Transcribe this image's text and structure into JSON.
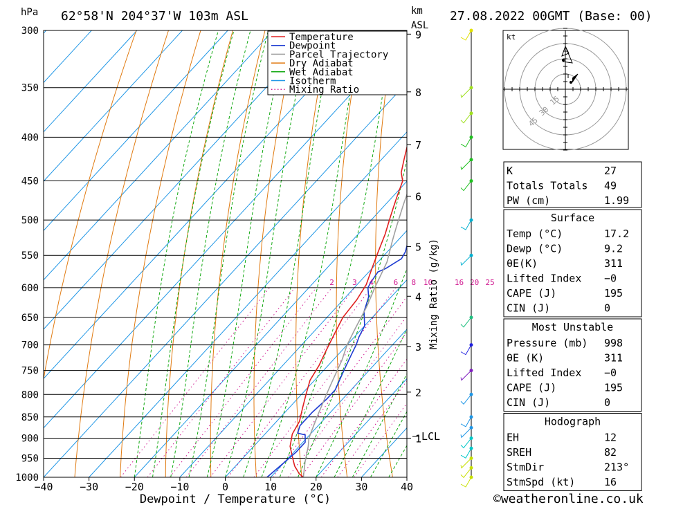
{
  "header": {
    "location": "62°58'N  204°37'W  103m  ASL",
    "datetime": "27.08.2022  00GMT  (Base: 00)",
    "pressure_unit": "hPa",
    "km_unit": "km",
    "asl_unit": "ASL"
  },
  "colors": {
    "temperature": "#e02020",
    "dewpoint": "#1e3cd2",
    "parcel": "#a0a0a0",
    "dry_adiabat": "#e07a10",
    "wet_adiabat": "#10a810",
    "isotherm": "#1e96e6",
    "mixing_ratio": "#d01890"
  },
  "legend": [
    {
      "label": "Temperature",
      "key": "temperature",
      "style": "solid"
    },
    {
      "label": "Dewpoint",
      "key": "dewpoint",
      "style": "solid"
    },
    {
      "label": "Parcel Trajectory",
      "key": "parcel",
      "style": "solid"
    },
    {
      "label": "Dry Adiabat",
      "key": "dry_adiabat",
      "style": "solid"
    },
    {
      "label": "Wet Adiabat",
      "key": "wet_adiabat",
      "style": "solid"
    },
    {
      "label": "Isotherm",
      "key": "isotherm",
      "style": "solid"
    },
    {
      "label": "Mixing Ratio",
      "key": "mixing_ratio",
      "style": "dotted"
    }
  ],
  "chart_data": {
    "type": "line",
    "xlabel": "Dewpoint / Temperature (°C)",
    "y2label": "Mixing Ratio (g/kg)",
    "xlim": [
      -40,
      40
    ],
    "ylim": [
      1000,
      300
    ],
    "yscale": "log",
    "xticks": [
      -40,
      -30,
      -20,
      -10,
      0,
      10,
      20,
      30,
      40
    ],
    "xtick_labels": [
      "−40",
      "−30",
      "−20",
      "−10",
      "0",
      "10",
      "20",
      "30",
      "40"
    ],
    "pressure_levels": [
      300,
      350,
      400,
      450,
      500,
      550,
      600,
      650,
      700,
      750,
      800,
      850,
      900,
      950,
      1000
    ],
    "km_ticks": [
      {
        "label": "9",
        "p": 303
      },
      {
        "label": "8",
        "p": 354
      },
      {
        "label": "7",
        "p": 408
      },
      {
        "label": "6",
        "p": 469
      },
      {
        "label": "5",
        "p": 537
      },
      {
        "label": "4",
        "p": 614
      },
      {
        "label": "3",
        "p": 703
      },
      {
        "label": "2",
        "p": 795
      },
      {
        "label": "1",
        "p": 900
      }
    ],
    "lcl": {
      "label": "LCL",
      "p": 896
    },
    "mixing_ratio_labels": [
      "2",
      "3",
      "4",
      "6",
      "8",
      "10",
      "16",
      "20",
      "25"
    ],
    "series": [
      {
        "name": "Temperature",
        "key": "temperature",
        "points": [
          [
            17.2,
            1000
          ],
          [
            15.5,
            990
          ],
          [
            13,
            970
          ],
          [
            11,
            950
          ],
          [
            8,
            920
          ],
          [
            6,
            890
          ],
          [
            5,
            860
          ],
          [
            3,
            830
          ],
          [
            1,
            800
          ],
          [
            -1,
            770
          ],
          [
            -2,
            740
          ],
          [
            -3.5,
            710
          ],
          [
            -5,
            680
          ],
          [
            -6.5,
            650
          ],
          [
            -7,
            620
          ],
          [
            -8,
            595
          ],
          [
            -10,
            570
          ],
          [
            -12,
            545
          ],
          [
            -14,
            520
          ],
          [
            -16,
            500
          ],
          [
            -17.5,
            485
          ],
          [
            -19,
            470
          ],
          [
            -21,
            450
          ],
          [
            -23,
            440
          ],
          [
            -25,
            425
          ],
          [
            -27,
            410
          ],
          [
            -29,
            395
          ],
          [
            -31,
            380
          ],
          [
            -33,
            365
          ],
          [
            -34,
            355
          ],
          [
            -35,
            340
          ],
          [
            -37,
            320
          ],
          [
            -38,
            310
          ],
          [
            -38.5,
            300
          ]
        ]
      },
      {
        "name": "Dewpoint",
        "key": "dewpoint",
        "points": [
          [
            9.2,
            1000
          ],
          [
            9.5,
            985
          ],
          [
            10,
            960
          ],
          [
            10.5,
            935
          ],
          [
            10.5,
            910
          ],
          [
            9,
            892
          ],
          [
            7,
            888
          ],
          [
            6,
            870
          ],
          [
            6,
            840
          ],
          [
            6.5,
            810
          ],
          [
            6.5,
            790
          ],
          [
            5.5,
            770
          ],
          [
            4.5,
            750
          ],
          [
            3,
            720
          ],
          [
            2,
            700
          ],
          [
            1,
            685
          ],
          [
            0,
            665
          ],
          [
            -3,
            640
          ],
          [
            -5,
            615
          ],
          [
            -7,
            600
          ],
          [
            -7.5,
            590
          ],
          [
            -8,
            575
          ],
          [
            -7,
            570
          ],
          [
            -5.5,
            555
          ],
          [
            -6,
            545
          ],
          [
            -7,
            535
          ],
          [
            -8.5,
            520
          ],
          [
            -9.5,
            500
          ],
          [
            -11.5,
            480
          ],
          [
            -13,
            470
          ],
          [
            -12,
            460
          ],
          [
            -11.5,
            450
          ],
          [
            -11,
            440
          ],
          [
            -11.5,
            425
          ],
          [
            -12.5,
            410
          ],
          [
            -13,
            395
          ],
          [
            -14,
            380
          ],
          [
            -15,
            365
          ],
          [
            -17,
            360
          ],
          [
            -18,
            355
          ],
          [
            -19,
            340
          ],
          [
            -20,
            335
          ],
          [
            -19,
            320
          ],
          [
            -17,
            305
          ],
          [
            -16,
            300
          ]
        ]
      },
      {
        "name": "Parcel Trajectory",
        "key": "parcel",
        "points": [
          [
            17.2,
            1000
          ],
          [
            14.5,
            960
          ],
          [
            12,
            920
          ],
          [
            10.5,
            900
          ],
          [
            9,
            870
          ],
          [
            7.5,
            840
          ],
          [
            5.5,
            800
          ],
          [
            4,
            770
          ],
          [
            2,
            730
          ],
          [
            0,
            700
          ],
          [
            -1.5,
            670
          ],
          [
            -3.5,
            630
          ],
          [
            -5.5,
            600
          ],
          [
            -8,
            560
          ],
          [
            -11,
            530
          ],
          [
            -13,
            510
          ],
          [
            -16,
            480
          ],
          [
            -19,
            450
          ],
          [
            -21.5,
            430
          ],
          [
            -25,
            400
          ],
          [
            -29,
            375
          ],
          [
            -33,
            350
          ],
          [
            -37,
            325
          ],
          [
            -40,
            305
          ]
        ]
      }
    ],
    "wind_barbs": [
      {
        "p": 1000,
        "color": "#c8e000"
      },
      {
        "p": 975,
        "color": "#c8e000"
      },
      {
        "p": 950,
        "color": "#c8e000"
      },
      {
        "p": 925,
        "color": "#00c8c8"
      },
      {
        "p": 900,
        "color": "#00c8c8"
      },
      {
        "p": 875,
        "color": "#1e96e6"
      },
      {
        "p": 850,
        "color": "#1e96e6"
      },
      {
        "p": 800,
        "color": "#1e96e6"
      },
      {
        "p": 750,
        "color": "#8020c0"
      },
      {
        "p": 700,
        "color": "#2020e0"
      },
      {
        "p": 650,
        "color": "#20c080"
      },
      {
        "p": 550,
        "color": "#00b0d0"
      },
      {
        "p": 500,
        "color": "#00b0d0"
      },
      {
        "p": 450,
        "color": "#20c020"
      },
      {
        "p": 425,
        "color": "#20c020"
      },
      {
        "p": 400,
        "color": "#20c020"
      },
      {
        "p": 375,
        "color": "#a0e020"
      },
      {
        "p": 350,
        "color": "#a0e020"
      },
      {
        "p": 300,
        "color": "#e0e000"
      }
    ]
  },
  "hodograph": {
    "unit": "kt",
    "ring_labels": [
      "15",
      "30",
      "45"
    ]
  },
  "indices": {
    "k": {
      "label": "K",
      "value": "27"
    },
    "tt": {
      "label": "Totals Totals",
      "value": "49"
    },
    "pw": {
      "label": "PW (cm)",
      "value": "1.99"
    }
  },
  "surface": {
    "title": "Surface",
    "rows": [
      {
        "label": "Temp (°C)",
        "value": "17.2"
      },
      {
        "label": "Dewp (°C)",
        "value": "9.2"
      },
      {
        "label": "θE(K)",
        "value": "311"
      },
      {
        "label": "Lifted Index",
        "value": "−0"
      },
      {
        "label": "CAPE (J)",
        "value": "195"
      },
      {
        "label": "CIN (J)",
        "value": "0"
      }
    ]
  },
  "most_unstable": {
    "title": "Most Unstable",
    "rows": [
      {
        "label": "Pressure (mb)",
        "value": "998"
      },
      {
        "label": "θE (K)",
        "value": "311"
      },
      {
        "label": "Lifted Index",
        "value": "−0"
      },
      {
        "label": "CAPE (J)",
        "value": "195"
      },
      {
        "label": "CIN (J)",
        "value": "0"
      }
    ]
  },
  "hodograph_table": {
    "title": "Hodograph",
    "rows": [
      {
        "label": "EH",
        "value": "12"
      },
      {
        "label": "SREH",
        "value": "82"
      },
      {
        "label": "StmDir",
        "value": "213°"
      },
      {
        "label": "StmSpd (kt)",
        "value": "16"
      }
    ]
  },
  "footer": {
    "copyright": "©weatheronline.co.uk"
  }
}
